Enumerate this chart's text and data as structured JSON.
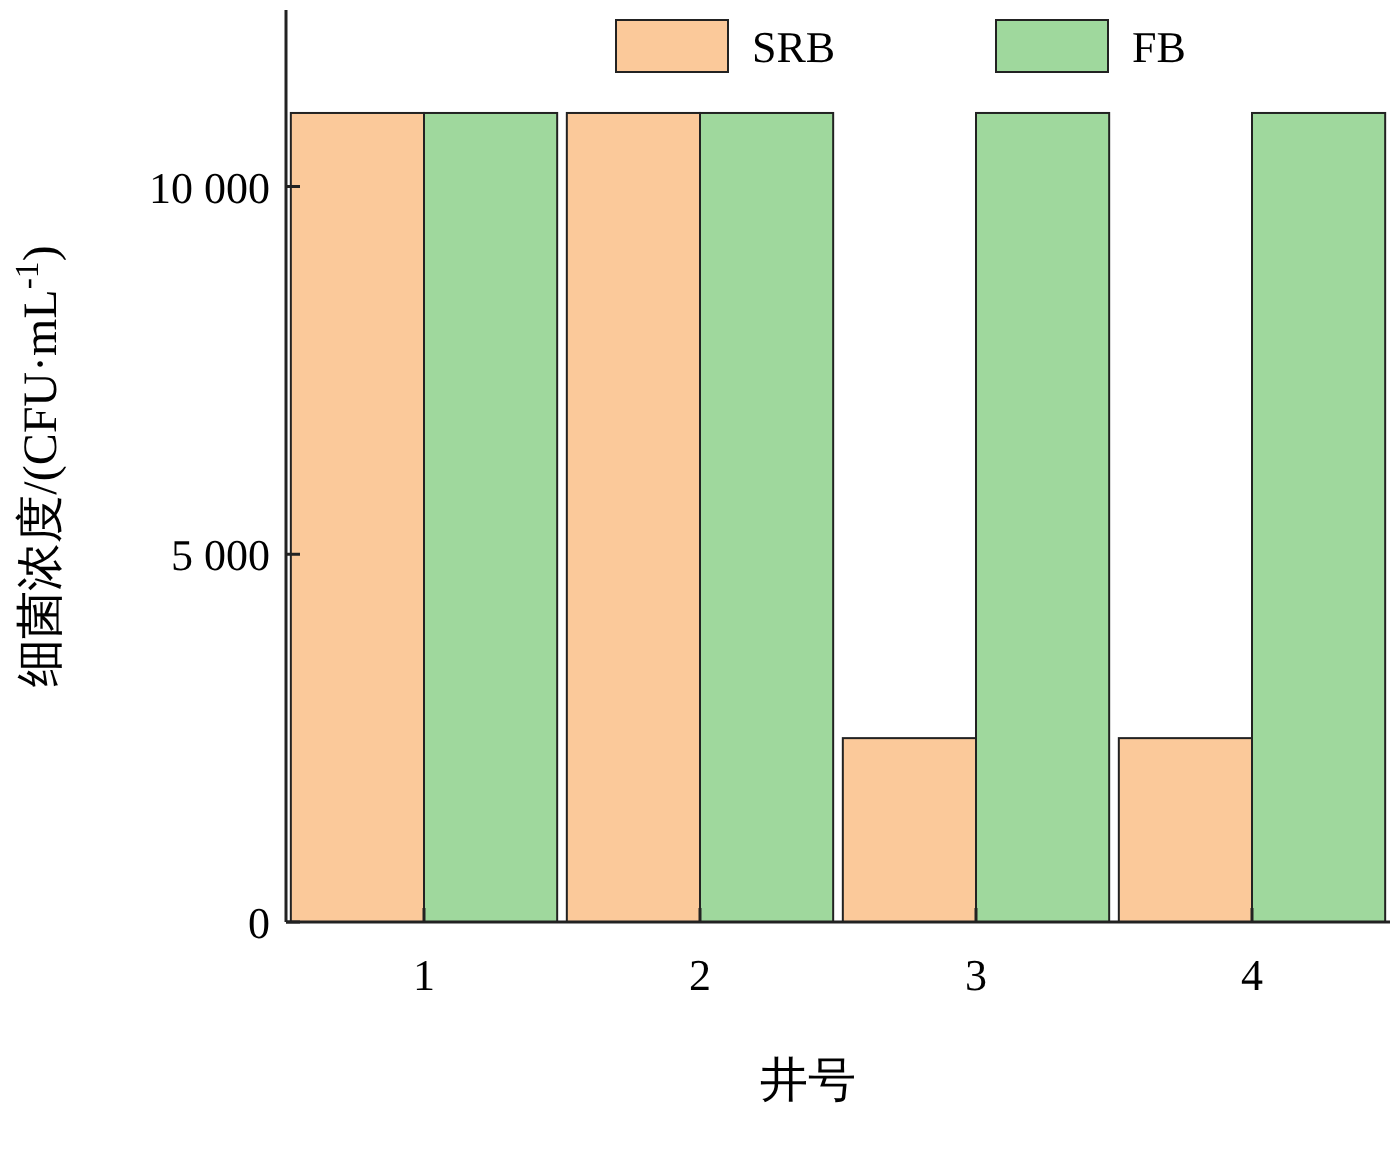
{
  "chart_data": {
    "type": "bar",
    "xlabel": "井号",
    "ylabel": "细菌浓度/(CFU·mL$^{-1}$)",
    "categories": [
      "1",
      "2",
      "3",
      "4"
    ],
    "series": [
      {
        "name": "SRB",
        "color": "#fbc99a",
        "values": [
          11000,
          11000,
          2500,
          2500
        ]
      },
      {
        "name": "FB",
        "color": "#9fd89d",
        "values": [
          11000,
          11000,
          11000,
          11000
        ]
      }
    ],
    "ylim": [
      0,
      12400
    ],
    "yticks": [
      {
        "value": 0,
        "label": "0"
      },
      {
        "value": 5000,
        "label": "5 000"
      },
      {
        "value": 10000,
        "label": "10 000"
      }
    ],
    "legend": "top right",
    "grid": false
  }
}
